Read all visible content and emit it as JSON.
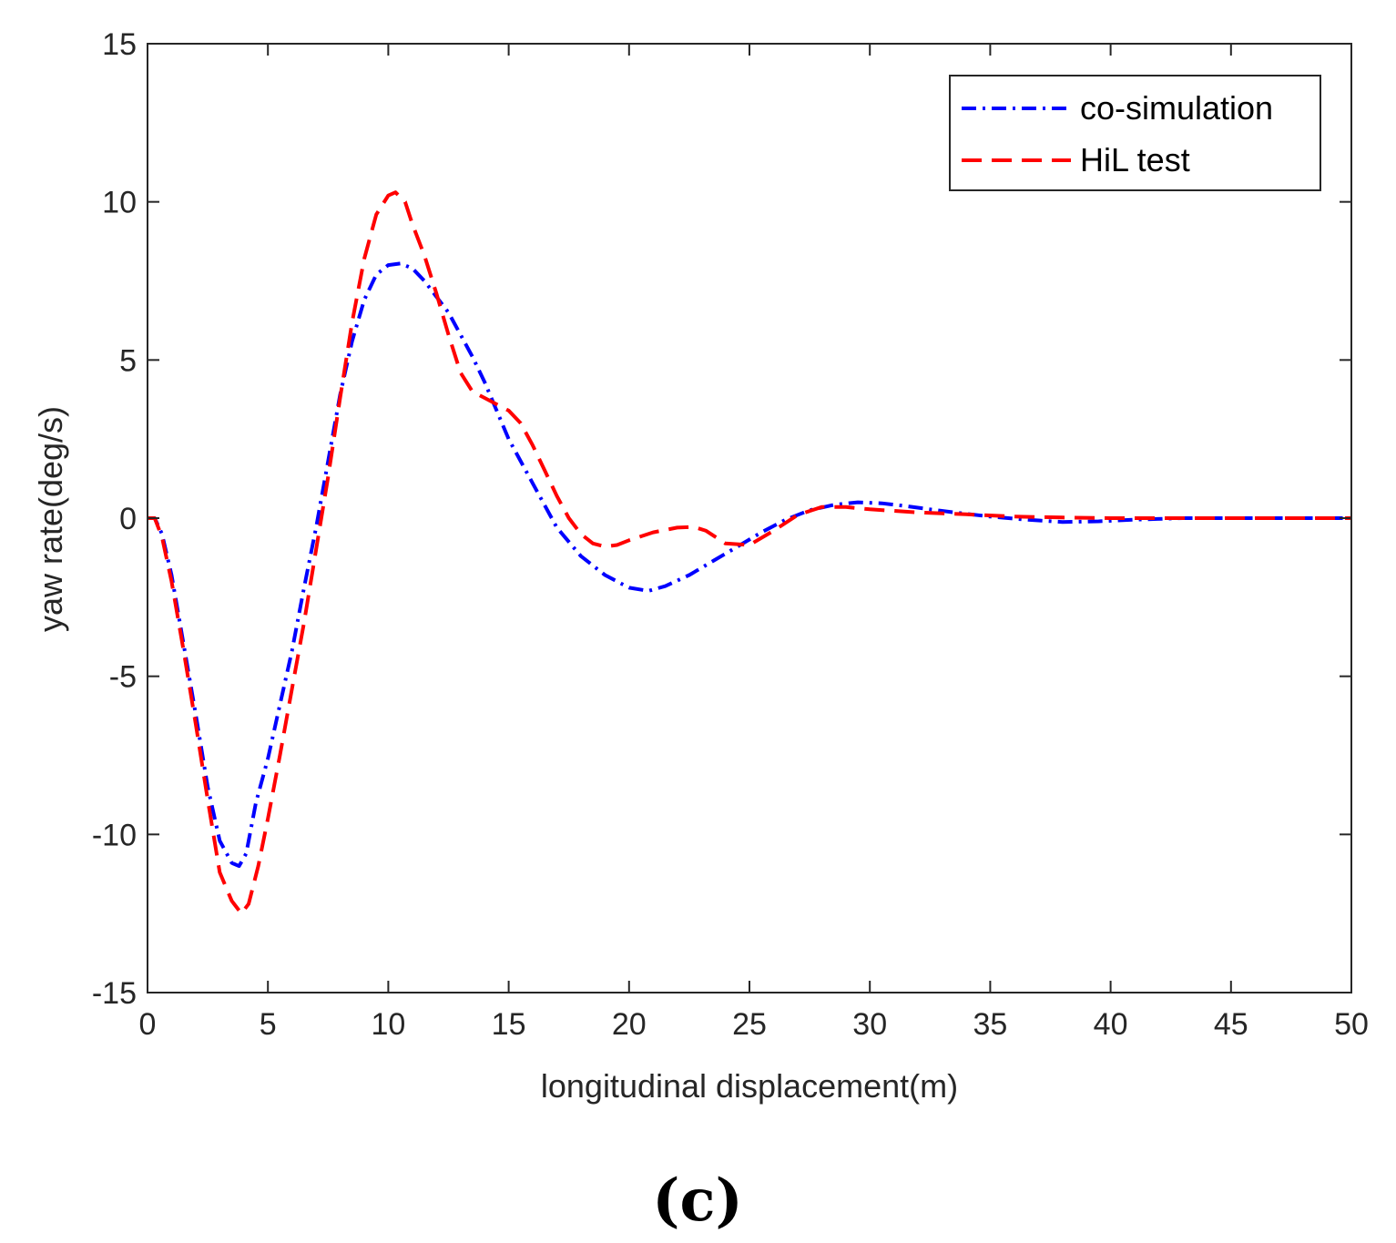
{
  "chart_data": {
    "type": "line",
    "title": "",
    "xlabel": "longitudinal displacement(m)",
    "ylabel": "yaw rate(deg/s)",
    "xlim": [
      0,
      50
    ],
    "ylim": [
      -15,
      15
    ],
    "xticks": [
      0,
      5,
      10,
      15,
      20,
      25,
      30,
      35,
      40,
      45,
      50
    ],
    "yticks": [
      -15,
      -10,
      -5,
      0,
      5,
      10,
      15
    ],
    "grid": false,
    "legend_position": "top-right",
    "series": [
      {
        "name": "co-simulation",
        "color": "#0000ff",
        "style": "dash-dot",
        "x": [
          0,
          0.3,
          0.6,
          1,
          1.5,
          2,
          2.5,
          3,
          3.5,
          3.8,
          4.1,
          4.5,
          5,
          5.5,
          6,
          6.5,
          7,
          7.5,
          8,
          8.5,
          9,
          9.5,
          10,
          10.5,
          11,
          11.5,
          12,
          12.5,
          13,
          13.5,
          14,
          14.5,
          15,
          15.5,
          16,
          17,
          18,
          19,
          20,
          20.8,
          21.5,
          22.5,
          23.5,
          24.5,
          25.5,
          26.5,
          27.5,
          28.5,
          29.5,
          30.5,
          31.5,
          32.5,
          33.5,
          35,
          36.5,
          38,
          39.5,
          41,
          43,
          45,
          47,
          50
        ],
        "y": [
          0,
          0,
          -0.5,
          -1.8,
          -4,
          -6.2,
          -8.5,
          -10.2,
          -10.9,
          -11,
          -10.6,
          -9,
          -7.6,
          -5.9,
          -4.2,
          -2.2,
          -0.3,
          1.8,
          3.9,
          5.6,
          6.9,
          7.7,
          8.0,
          8.05,
          7.9,
          7.5,
          7.0,
          6.5,
          5.8,
          5.1,
          4.3,
          3.4,
          2.5,
          1.8,
          1.1,
          -0.3,
          -1.2,
          -1.8,
          -2.2,
          -2.3,
          -2.15,
          -1.8,
          -1.35,
          -0.9,
          -0.45,
          -0.05,
          0.25,
          0.42,
          0.5,
          0.47,
          0.38,
          0.28,
          0.18,
          0.05,
          -0.05,
          -0.12,
          -0.1,
          -0.05,
          0,
          0,
          0,
          0
        ]
      },
      {
        "name": "HiL test",
        "color": "#ff0000",
        "style": "dashed",
        "x": [
          0,
          0.3,
          0.6,
          1,
          1.5,
          2,
          2.5,
          3,
          3.5,
          3.9,
          4.2,
          4.6,
          5,
          5.5,
          6,
          6.5,
          7,
          7.5,
          8,
          8.5,
          9,
          9.5,
          10,
          10.3,
          10.7,
          11,
          11.5,
          12,
          12.5,
          13,
          13.5,
          14,
          14.5,
          15,
          15.5,
          16,
          16.5,
          17,
          17.5,
          18,
          18.5,
          19,
          19.5,
          20,
          21,
          22,
          22.7,
          23.2,
          24,
          25,
          26,
          27,
          28,
          29,
          30,
          32,
          34,
          36,
          38,
          40,
          45,
          50
        ],
        "y": [
          0,
          0,
          -0.6,
          -2,
          -4.2,
          -6.5,
          -8.9,
          -11.2,
          -12.1,
          -12.5,
          -12.2,
          -11,
          -9.5,
          -7.5,
          -5.4,
          -3.3,
          -1.0,
          1.3,
          3.8,
          6.2,
          8.2,
          9.6,
          10.2,
          10.3,
          10.0,
          9.3,
          8.3,
          7.1,
          5.8,
          4.6,
          4.0,
          3.8,
          3.6,
          3.4,
          3.0,
          2.3,
          1.5,
          0.7,
          0,
          -0.5,
          -0.8,
          -0.9,
          -0.85,
          -0.7,
          -0.45,
          -0.3,
          -0.28,
          -0.4,
          -0.8,
          -0.85,
          -0.4,
          0.1,
          0.35,
          0.35,
          0.28,
          0.18,
          0.12,
          0.05,
          0.02,
          0,
          0,
          0
        ]
      }
    ],
    "caption": "(c)"
  }
}
